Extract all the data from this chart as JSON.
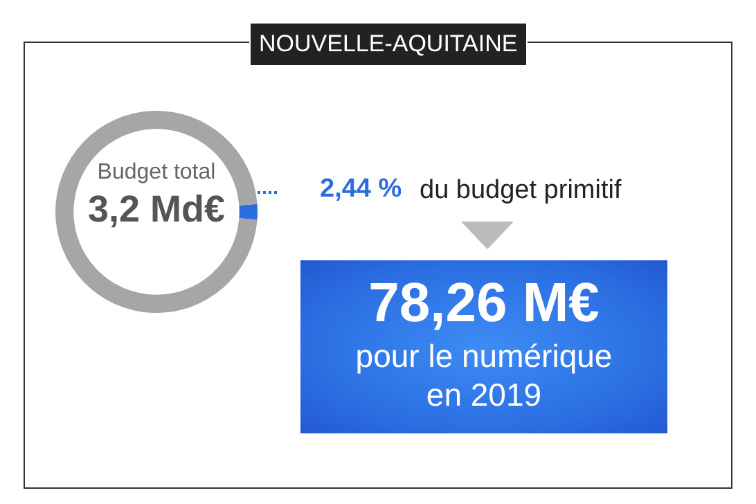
{
  "chart_data": {
    "type": "donut",
    "title": "NOUVELLE-AQUITAINE",
    "categories": [
      null,
      null
    ],
    "values": [
      2.44,
      97.56
    ],
    "colors": [
      "#2a6de0",
      "#a6a6a6"
    ],
    "value_labels": [
      "2,44 %",
      null
    ],
    "legend": false,
    "annotations": [
      "Budget total",
      "3,2 Md€",
      "du budget primitif",
      "78,26 M€",
      "pour le numérique",
      "en 2019"
    ]
  }
}
